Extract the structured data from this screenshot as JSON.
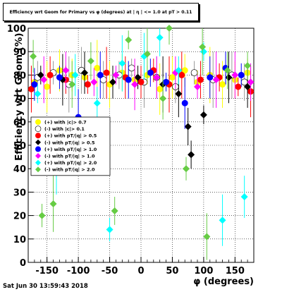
{
  "title": "Efficiency wrt Geom for Primary vs φ (degrees) at | η | <= 1.0 at pT > 0.11",
  "footer": "Sat Jun 30 13:59:43 2018",
  "chart_data": {
    "type": "scatter",
    "title": "Efficiency wrt Geom for Primary vs φ (degrees) at | η | <= 1.0 at pT > 0.11",
    "xlabel": "φ (degrees)",
    "ylabel": "Efficiency wrt Geom (%)",
    "xlim": [
      -180,
      180
    ],
    "ylim": [
      0,
      100
    ],
    "x_ticks": [
      -150,
      -100,
      -50,
      0,
      50,
      100,
      150
    ],
    "y_ticks": [
      0,
      10,
      20,
      30,
      40,
      50,
      60,
      70,
      80,
      90,
      100
    ],
    "grid": true,
    "legend_position": "center-left",
    "series": [
      {
        "name": "(+) with |c|> 0.7",
        "color": "#ffff00",
        "marker": "circle",
        "x": [
          -170,
          -150,
          -130,
          -110,
          -90,
          -70,
          -50,
          -30,
          -10,
          10,
          30,
          50,
          70,
          90,
          110,
          130,
          150,
          170
        ],
        "y": [
          77,
          75,
          82,
          80,
          79,
          83,
          76,
          81,
          78,
          80,
          74,
          79,
          82,
          77,
          80,
          76,
          78,
          81
        ]
      },
      {
        "name": "(-) with |c|> 0.1",
        "color": "#ffffff",
        "marker": "circle",
        "x": [
          -165,
          -140,
          -115,
          -95,
          -60,
          -35,
          -15,
          5,
          25,
          55,
          85,
          115,
          145,
          165
        ],
        "y": [
          79,
          81,
          76,
          82,
          78,
          80,
          83,
          77,
          79,
          75,
          81,
          78,
          80,
          77
        ]
      },
      {
        "name": "(+) with pT/|q| > 0.5",
        "color": "#ff0000",
        "marker": "circle",
        "x": [
          -175,
          -145,
          -120,
          -85,
          -55,
          -25,
          0,
          20,
          45,
          65,
          95,
          125,
          155,
          175
        ],
        "y": [
          74,
          80,
          78,
          76,
          81,
          79,
          77,
          82,
          76,
          80,
          78,
          79,
          75,
          73
        ]
      },
      {
        "name": "(-) with pT/|q| > 0.5",
        "color": "#000000",
        "marker": "diamond",
        "x": [
          -160,
          -125,
          -90,
          -45,
          -5,
          35,
          60,
          75,
          80,
          100,
          140,
          170
        ],
        "y": [
          80,
          78,
          81,
          77,
          79,
          76,
          72,
          58,
          46,
          63,
          79,
          75
        ]
      },
      {
        "name": "(+) with pT/|q| > 1.0",
        "color": "#0000ff",
        "marker": "circle",
        "x": [
          -170,
          -130,
          -100,
          -65,
          -20,
          15,
          40,
          70,
          110,
          135,
          160
        ],
        "y": [
          76,
          79,
          62,
          80,
          78,
          81,
          77,
          68,
          79,
          83,
          80
        ]
      },
      {
        "name": "(-) with pT/|q| > 1.0",
        "color": "#ff00ff",
        "marker": "diamond",
        "x": [
          -155,
          -120,
          -75,
          -40,
          -10,
          25,
          55,
          90,
          120,
          150,
          175
        ],
        "y": [
          78,
          82,
          77,
          80,
          76,
          79,
          81,
          75,
          78,
          80,
          77
        ]
      },
      {
        "name": "(+) with pT/|q| > 2.0",
        "color": "#00ffff",
        "marker": "diamond",
        "x": [
          -165,
          -135,
          -105,
          -70,
          -50,
          -30,
          5,
          30,
          60,
          100,
          130,
          165
        ],
        "y": [
          72,
          40,
          80,
          68,
          14,
          85,
          88,
          96,
          82,
          90,
          18,
          28
        ]
      },
      {
        "name": "(-) with pT/|q| > 2.0",
        "color": "#66cc44",
        "marker": "diamond",
        "x": [
          -172,
          -158,
          -140,
          -110,
          -80,
          -42,
          -20,
          10,
          35,
          45,
          72,
          98,
          105,
          138,
          170
        ],
        "y": [
          88,
          20,
          25,
          76,
          86,
          22,
          95,
          89,
          70,
          100,
          40,
          92,
          11,
          82,
          84
        ]
      }
    ]
  }
}
